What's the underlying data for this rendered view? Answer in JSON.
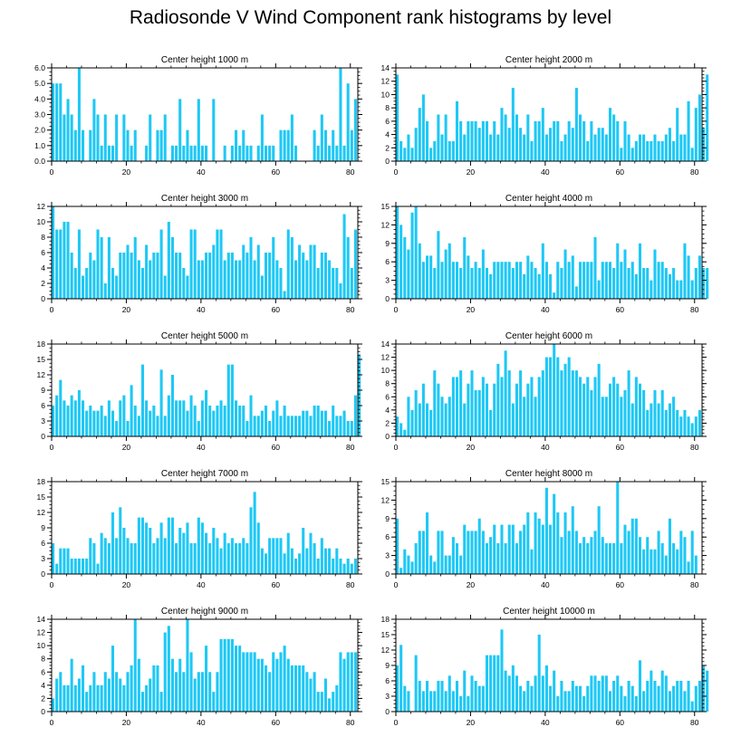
{
  "title": "Radiosonde V Wind Component rank histograms by level",
  "bar_color": "#1ec8f5",
  "chart_data": [
    {
      "type": "bar",
      "title": "Center height 1000 m",
      "ylim": [
        0,
        6
      ],
      "yticks": [
        0,
        1,
        2,
        3,
        4,
        5,
        6
      ],
      "ytick_labels": [
        "0.0",
        "1.0",
        "2.0",
        "3.0",
        "4.0",
        "5.0",
        "6.0"
      ],
      "xlim": [
        0,
        82
      ],
      "xticks": [
        0,
        20,
        40,
        60,
        80
      ],
      "values": [
        5,
        5,
        5,
        3,
        4,
        3,
        2,
        6,
        2,
        0,
        2,
        4,
        3,
        1,
        3,
        1,
        1,
        3,
        0,
        3,
        2,
        1,
        2,
        0,
        0,
        1,
        3,
        0,
        2,
        2,
        3,
        0,
        1,
        1,
        4,
        1,
        2,
        1,
        1,
        4,
        1,
        1,
        0,
        4,
        0,
        0,
        1,
        0,
        1,
        2,
        1,
        2,
        1,
        1,
        0,
        1,
        3,
        1,
        1,
        1,
        0,
        2,
        2,
        2,
        3,
        1,
        0,
        0,
        0,
        0,
        2,
        1,
        3,
        2,
        1,
        2,
        1,
        6,
        1,
        5,
        2,
        4
      ]
    },
    {
      "type": "bar",
      "title": "Center height 2000 m",
      "ylim": [
        0,
        14
      ],
      "yticks": [
        0,
        2,
        4,
        6,
        8,
        10,
        12,
        14
      ],
      "ytick_labels": [
        "0",
        "2",
        "4",
        "6",
        "8",
        "10",
        "12",
        "14"
      ],
      "xlim": [
        0,
        82
      ],
      "xticks": [
        0,
        20,
        40,
        60,
        80
      ],
      "values": [
        13,
        3,
        2,
        4,
        2,
        5,
        8,
        10,
        6,
        2,
        3,
        7,
        4,
        7,
        3,
        3,
        9,
        6,
        4,
        6,
        6,
        6,
        5,
        6,
        6,
        4,
        6,
        4,
        8,
        7,
        5,
        11,
        7,
        5,
        4,
        7,
        3,
        6,
        6,
        8,
        4,
        5,
        6,
        6,
        3,
        4,
        6,
        5,
        11,
        7,
        6,
        3,
        6,
        4,
        5,
        5,
        4,
        8,
        7,
        6,
        2,
        6,
        4,
        2,
        3,
        4,
        4,
        3,
        3,
        4,
        3,
        3,
        4,
        5,
        3,
        8,
        4,
        4,
        9,
        2,
        8,
        10,
        5,
        13
      ]
    },
    {
      "type": "bar",
      "title": "Center height 3000 m",
      "ylim": [
        0,
        12
      ],
      "yticks": [
        0,
        2,
        4,
        6,
        8,
        10,
        12
      ],
      "ytick_labels": [
        "0",
        "2",
        "4",
        "6",
        "8",
        "10",
        "12"
      ],
      "xlim": [
        0,
        82
      ],
      "xticks": [
        0,
        20,
        40,
        60,
        80
      ],
      "values": [
        12,
        9,
        9,
        10,
        10,
        6,
        4,
        9,
        3,
        4,
        6,
        5,
        9,
        8,
        2,
        8,
        4,
        3,
        6,
        6,
        7,
        6,
        8,
        5,
        4,
        7,
        5,
        6,
        6,
        9,
        3,
        10,
        8,
        6,
        6,
        4,
        3,
        9,
        9,
        5,
        5,
        6,
        6,
        7,
        9,
        9,
        5,
        6,
        6,
        5,
        5,
        7,
        6,
        8,
        5,
        7,
        3,
        6,
        6,
        8,
        5,
        4,
        1,
        9,
        8,
        5,
        7,
        6,
        5,
        7,
        7,
        4,
        6,
        6,
        5,
        4,
        4,
        2,
        11,
        8,
        4,
        9
      ]
    },
    {
      "type": "bar",
      "title": "Center height 4000 m",
      "ylim": [
        0,
        15
      ],
      "yticks": [
        0,
        3,
        6,
        9,
        12,
        15
      ],
      "ytick_labels": [
        "0",
        "3",
        "6",
        "9",
        "12",
        "15"
      ],
      "xlim": [
        0,
        82
      ],
      "xticks": [
        0,
        20,
        40,
        60,
        80
      ],
      "values": [
        15,
        12,
        10,
        8,
        14,
        15,
        9,
        6,
        7,
        7,
        5,
        11,
        6,
        8,
        9,
        6,
        6,
        5,
        10,
        7,
        5,
        6,
        5,
        8,
        5,
        4,
        6,
        6,
        6,
        6,
        6,
        5,
        6,
        6,
        4,
        7,
        6,
        5,
        4,
        9,
        6,
        4,
        1,
        6,
        5,
        8,
        6,
        7,
        2,
        6,
        6,
        6,
        6,
        10,
        3,
        6,
        6,
        6,
        5,
        9,
        6,
        8,
        5,
        6,
        4,
        9,
        5,
        5,
        3,
        8,
        6,
        6,
        5,
        4,
        5,
        3,
        3,
        9,
        7,
        3,
        5,
        7,
        5,
        5
      ]
    },
    {
      "type": "bar",
      "title": "Center height 5000 m",
      "ylim": [
        0,
        18
      ],
      "yticks": [
        0,
        3,
        6,
        9,
        12,
        15,
        18
      ],
      "ytick_labels": [
        "0",
        "3",
        "6",
        "9",
        "12",
        "15",
        "18"
      ],
      "xlim": [
        0,
        82
      ],
      "xticks": [
        0,
        20,
        40,
        60,
        80
      ],
      "values": [
        6,
        8,
        11,
        7,
        6,
        8,
        7,
        9,
        7,
        5,
        6,
        5,
        5,
        6,
        4,
        7,
        5,
        3,
        7,
        8,
        3,
        10,
        6,
        4,
        14,
        7,
        5,
        6,
        4,
        13,
        4,
        8,
        12,
        7,
        7,
        7,
        5,
        8,
        6,
        3,
        7,
        9,
        6,
        5,
        6,
        7,
        6,
        14,
        14,
        7,
        6,
        6,
        3,
        8,
        4,
        4,
        5,
        6,
        3,
        5,
        7,
        4,
        6,
        4,
        4,
        4,
        4,
        5,
        5,
        4,
        6,
        6,
        5,
        5,
        3,
        6,
        4,
        4,
        5,
        3,
        3,
        8,
        16
      ]
    },
    {
      "type": "bar",
      "title": "Center height 6000 m",
      "ylim": [
        0,
        14
      ],
      "yticks": [
        0,
        2,
        4,
        6,
        8,
        10,
        12,
        14
      ],
      "ytick_labels": [
        "0",
        "2",
        "4",
        "6",
        "8",
        "10",
        "12",
        "14"
      ],
      "xlim": [
        0,
        82
      ],
      "xticks": [
        0,
        20,
        40,
        60,
        80
      ],
      "values": [
        3,
        2,
        1,
        6,
        4,
        7,
        5,
        8,
        5,
        4,
        10,
        8,
        6,
        5,
        6,
        9,
        9,
        10,
        5,
        8,
        10,
        7,
        7,
        9,
        8,
        4,
        8,
        11,
        9,
        13,
        10,
        5,
        8,
        10,
        6,
        8,
        9,
        6,
        9,
        10,
        12,
        12,
        14,
        12,
        10,
        11,
        12,
        10,
        10,
        9,
        8,
        9,
        7,
        9,
        11,
        6,
        6,
        8,
        9,
        8,
        6,
        7,
        10,
        5,
        9,
        8,
        7,
        4,
        5,
        7,
        5,
        7,
        4,
        5,
        6,
        4,
        3,
        4,
        3,
        2,
        3,
        4
      ]
    },
    {
      "type": "bar",
      "title": "Center height 7000 m",
      "ylim": [
        0,
        18
      ],
      "yticks": [
        0,
        3,
        6,
        9,
        12,
        15,
        18
      ],
      "ytick_labels": [
        "0",
        "3",
        "6",
        "9",
        "12",
        "15",
        "18"
      ],
      "xlim": [
        0,
        82
      ],
      "xticks": [
        0,
        20,
        40,
        60,
        80
      ],
      "values": [
        6,
        2,
        5,
        5,
        5,
        3,
        3,
        3,
        3,
        3,
        7,
        6,
        2,
        8,
        7,
        6,
        12,
        7,
        13,
        9,
        7,
        6,
        6,
        11,
        11,
        10,
        9,
        6,
        7,
        10,
        7,
        11,
        11,
        6,
        9,
        8,
        10,
        6,
        6,
        11,
        10,
        8,
        6,
        9,
        7,
        5,
        8,
        6,
        7,
        6,
        6,
        7,
        6,
        13,
        16,
        10,
        5,
        4,
        7,
        7,
        7,
        7,
        4,
        8,
        5,
        3,
        4,
        9,
        5,
        8,
        6,
        3,
        7,
        5,
        5,
        3,
        5,
        3,
        2,
        3,
        2,
        3
      ]
    },
    {
      "type": "bar",
      "title": "Center height 8000 m",
      "ylim": [
        0,
        15
      ],
      "yticks": [
        0,
        3,
        6,
        9,
        12,
        15
      ],
      "ytick_labels": [
        "0",
        "3",
        "6",
        "9",
        "12",
        "15"
      ],
      "xlim": [
        0,
        82
      ],
      "xticks": [
        0,
        20,
        40,
        60,
        80
      ],
      "values": [
        9,
        1,
        4,
        3,
        2,
        5,
        7,
        7,
        10,
        3,
        2,
        7,
        7,
        3,
        3,
        6,
        5,
        3,
        8,
        7,
        7,
        7,
        9,
        7,
        5,
        6,
        8,
        5,
        8,
        5,
        8,
        8,
        5,
        7,
        8,
        10,
        4,
        10,
        9,
        8,
        14,
        8,
        13,
        10,
        6,
        10,
        7,
        11,
        7,
        5,
        6,
        5,
        6,
        7,
        11,
        6,
        5,
        5,
        5,
        15,
        5,
        8,
        7,
        9,
        9,
        6,
        4,
        6,
        4,
        4,
        7,
        5,
        3,
        9,
        5,
        4,
        7,
        6,
        2,
        7,
        3
      ]
    },
    {
      "type": "bar",
      "title": "Center height 9000 m",
      "ylim": [
        0,
        14
      ],
      "yticks": [
        0,
        2,
        4,
        6,
        8,
        10,
        12,
        14
      ],
      "ytick_labels": [
        "0",
        "2",
        "4",
        "6",
        "8",
        "10",
        "12",
        "14"
      ],
      "xlim": [
        0,
        82
      ],
      "xticks": [
        0,
        20,
        40,
        60,
        80
      ],
      "values": [
        2,
        5,
        6,
        4,
        4,
        8,
        4,
        5,
        7,
        3,
        4,
        6,
        4,
        4,
        6,
        5,
        10,
        6,
        5,
        4,
        6,
        7,
        14,
        8,
        3,
        4,
        5,
        7,
        7,
        3,
        12,
        13,
        8,
        6,
        8,
        6,
        14,
        9,
        5,
        6,
        6,
        10,
        6,
        3,
        6,
        11,
        11,
        11,
        11,
        10,
        10,
        9,
        9,
        9,
        9,
        8,
        8,
        7,
        6,
        9,
        8,
        9,
        10,
        8,
        7,
        7,
        7,
        7,
        6,
        5,
        6,
        3,
        3,
        5,
        2,
        3,
        4,
        9,
        8,
        9,
        9,
        9
      ]
    },
    {
      "type": "bar",
      "title": "Center height 10000 m",
      "ylim": [
        0,
        18
      ],
      "yticks": [
        0,
        3,
        6,
        9,
        12,
        15,
        18
      ],
      "ytick_labels": [
        "0",
        "3",
        "6",
        "9",
        "12",
        "15",
        "18"
      ],
      "xlim": [
        0,
        82
      ],
      "xticks": [
        0,
        20,
        40,
        60,
        80
      ],
      "values": [
        9,
        13,
        5,
        4,
        0,
        11,
        6,
        4,
        6,
        4,
        4,
        6,
        6,
        4,
        7,
        4,
        6,
        3,
        8,
        3,
        7,
        6,
        5,
        5,
        11,
        11,
        11,
        11,
        16,
        8,
        7,
        9,
        7,
        5,
        4,
        6,
        5,
        7,
        15,
        7,
        9,
        5,
        8,
        3,
        6,
        4,
        4,
        6,
        5,
        5,
        3,
        5,
        7,
        7,
        6,
        7,
        7,
        4,
        6,
        7,
        5,
        3,
        6,
        5,
        3,
        10,
        4,
        6,
        8,
        6,
        5,
        8,
        7,
        4,
        5,
        6,
        6,
        4,
        6,
        2,
        5,
        6,
        9,
        8
      ]
    }
  ]
}
